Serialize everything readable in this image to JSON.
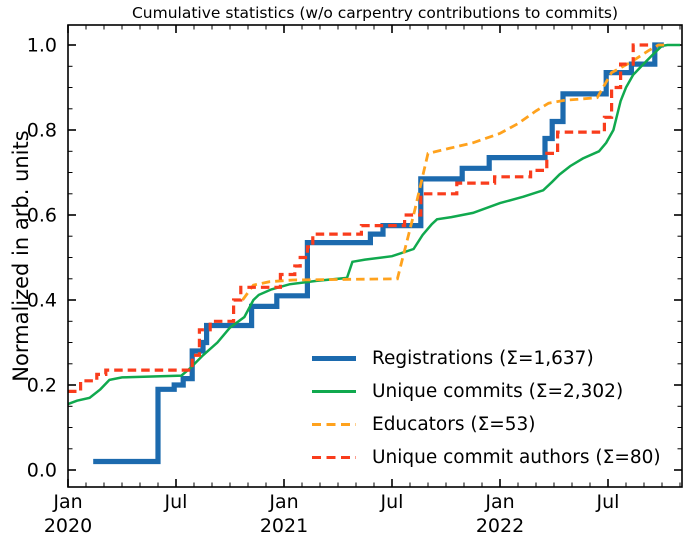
{
  "chart_data": {
    "type": "line",
    "title": "Cumulative statistics (w/o carpentry contributions to commits)",
    "xlabel": "",
    "ylabel": "Normalized in arb. units",
    "grid": false,
    "legend": {
      "position": "inside lower right",
      "frame": false
    },
    "x_axis": {
      "unit": "months since 2020-01",
      "range": [
        0,
        34.1
      ],
      "minor_tick_every_months": 1,
      "major_ticks": [
        {
          "m": 0,
          "line1": "Jan",
          "line2": "2020"
        },
        {
          "m": 6,
          "line1": "Jul",
          "line2": ""
        },
        {
          "m": 12,
          "line1": "Jan",
          "line2": "2021"
        },
        {
          "m": 18,
          "line1": "Jul",
          "line2": ""
        },
        {
          "m": 24,
          "line1": "Jan",
          "line2": "2022"
        },
        {
          "m": 30,
          "line1": "Jul",
          "line2": ""
        }
      ]
    },
    "y_axis": {
      "range": [
        -0.04,
        1.047
      ],
      "major_ticks": [
        0,
        0.2,
        0.4,
        0.6,
        0.8,
        1.0
      ],
      "major_tick_labels": [
        "0.0",
        "0.2",
        "0.4",
        "0.6",
        "0.8",
        "1.0"
      ],
      "minor_tick_step": 0.05
    },
    "series": [
      {
        "name": "Registrations  (Σ=1,637)",
        "total": 1637,
        "color": "#1c6aae",
        "width": 5.2,
        "dash": false,
        "step": true,
        "points": [
          [
            1.4,
            0.02
          ],
          [
            5.0,
            0.19
          ],
          [
            5.9,
            0.2
          ],
          [
            6.4,
            0.215
          ],
          [
            6.9,
            0.28
          ],
          [
            7.5,
            0.3
          ],
          [
            7.7,
            0.34
          ],
          [
            10.2,
            0.385
          ],
          [
            11.6,
            0.41
          ],
          [
            13.3,
            0.535
          ],
          [
            16.8,
            0.555
          ],
          [
            17.5,
            0.575
          ],
          [
            19.6,
            0.685
          ],
          [
            21.9,
            0.71
          ],
          [
            23.4,
            0.735
          ],
          [
            26.5,
            0.78
          ],
          [
            26.9,
            0.82
          ],
          [
            27.5,
            0.885
          ],
          [
            29.9,
            0.935
          ],
          [
            31.3,
            0.955
          ],
          [
            32.6,
            1.0
          ],
          [
            33.1,
            1.0
          ]
        ]
      },
      {
        "name": "Unique commits (Σ=2,302)",
        "total": 2302,
        "color": "#10a94e",
        "width": 2.5,
        "dash": false,
        "step": false,
        "points": [
          [
            0,
            0.155
          ],
          [
            0.5,
            0.163
          ],
          [
            1.2,
            0.17
          ],
          [
            1.8,
            0.19
          ],
          [
            2.3,
            0.212
          ],
          [
            3.0,
            0.218
          ],
          [
            6.3,
            0.222
          ],
          [
            6.8,
            0.24
          ],
          [
            7.5,
            0.27
          ],
          [
            8.3,
            0.3
          ],
          [
            9.0,
            0.335
          ],
          [
            9.8,
            0.36
          ],
          [
            10.3,
            0.4
          ],
          [
            10.6,
            0.412
          ],
          [
            11.3,
            0.425
          ],
          [
            12.3,
            0.437
          ],
          [
            13.8,
            0.445
          ],
          [
            15.5,
            0.452
          ],
          [
            15.8,
            0.49
          ],
          [
            16.5,
            0.495
          ],
          [
            18.0,
            0.503
          ],
          [
            19.2,
            0.52
          ],
          [
            19.7,
            0.553
          ],
          [
            20.2,
            0.578
          ],
          [
            20.5,
            0.59
          ],
          [
            21.3,
            0.595
          ],
          [
            22.5,
            0.605
          ],
          [
            24.0,
            0.628
          ],
          [
            25.3,
            0.643
          ],
          [
            26.4,
            0.658
          ],
          [
            26.9,
            0.678
          ],
          [
            27.3,
            0.695
          ],
          [
            27.9,
            0.715
          ],
          [
            28.6,
            0.733
          ],
          [
            29.5,
            0.75
          ],
          [
            29.9,
            0.77
          ],
          [
            30.3,
            0.8
          ],
          [
            30.7,
            0.868
          ],
          [
            31.0,
            0.9
          ],
          [
            31.4,
            0.93
          ],
          [
            31.9,
            0.952
          ],
          [
            32.5,
            0.978
          ],
          [
            33.0,
            0.998
          ],
          [
            33.3,
            1.0
          ],
          [
            34.0,
            1.0
          ]
        ]
      },
      {
        "name": "Educators (Σ=53)",
        "total": 53,
        "color": "#ffa21d",
        "width": 2.8,
        "dash": true,
        "step": false,
        "points": [
          [
            9.7,
            0.4
          ],
          [
            10.3,
            0.435
          ],
          [
            11.2,
            0.443
          ],
          [
            12.5,
            0.447
          ],
          [
            18.3,
            0.45
          ],
          [
            19.2,
            0.6
          ],
          [
            20.0,
            0.745
          ],
          [
            21.2,
            0.757
          ],
          [
            22.5,
            0.77
          ],
          [
            24.0,
            0.792
          ],
          [
            25.0,
            0.815
          ],
          [
            26.0,
            0.845
          ],
          [
            26.7,
            0.863
          ],
          [
            27.6,
            0.87
          ],
          [
            29.4,
            0.876
          ],
          [
            30.2,
            0.935
          ],
          [
            31.2,
            0.958
          ],
          [
            32.3,
            0.988
          ],
          [
            32.8,
            1.0
          ],
          [
            33.2,
            1.0
          ]
        ]
      },
      {
        "name": "Unique commit authors (Σ=80)",
        "total": 80,
        "color": "#f93c1c",
        "width": 3.2,
        "dash": true,
        "step": true,
        "points": [
          [
            0,
            0.185
          ],
          [
            0.7,
            0.21
          ],
          [
            1.6,
            0.225
          ],
          [
            2.1,
            0.235
          ],
          [
            6.9,
            0.27
          ],
          [
            7.3,
            0.33
          ],
          [
            7.9,
            0.35
          ],
          [
            9.2,
            0.4
          ],
          [
            9.6,
            0.43
          ],
          [
            11.8,
            0.46
          ],
          [
            12.6,
            0.48
          ],
          [
            12.9,
            0.5
          ],
          [
            13.3,
            0.525
          ],
          [
            13.6,
            0.555
          ],
          [
            16.3,
            0.575
          ],
          [
            18.7,
            0.6
          ],
          [
            19.6,
            0.65
          ],
          [
            21.6,
            0.675
          ],
          [
            23.7,
            0.69
          ],
          [
            25.7,
            0.705
          ],
          [
            26.6,
            0.745
          ],
          [
            27.2,
            0.795
          ],
          [
            29.8,
            0.83
          ],
          [
            30.2,
            0.9
          ],
          [
            30.7,
            0.955
          ],
          [
            31.4,
            1.0
          ],
          [
            32.3,
            1.0
          ]
        ]
      }
    ]
  }
}
